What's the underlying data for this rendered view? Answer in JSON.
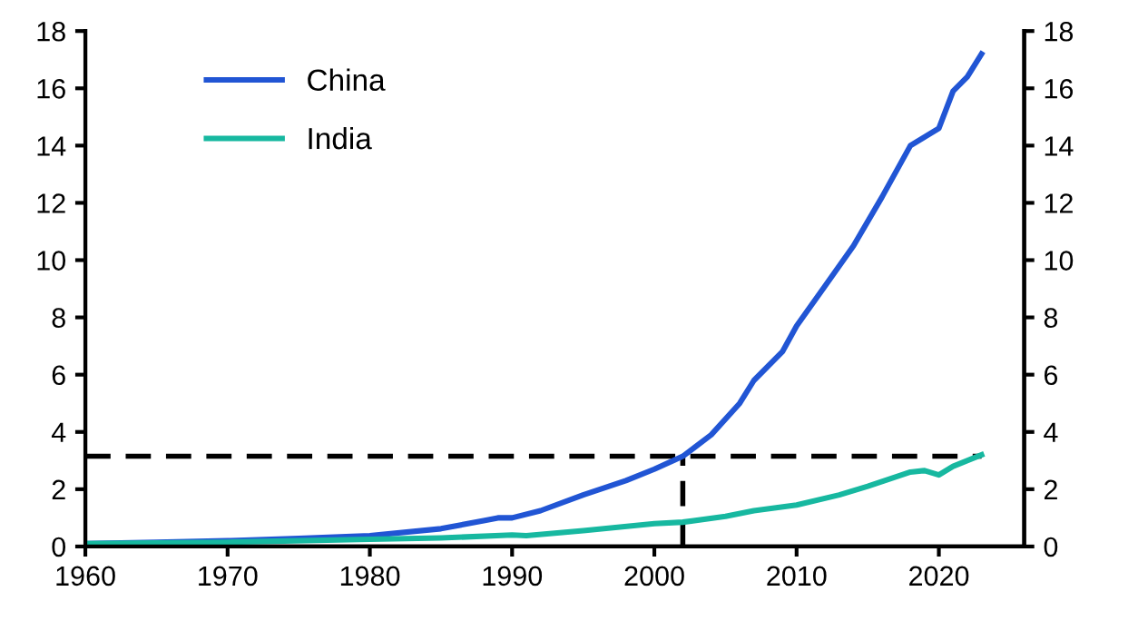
{
  "chart_data": {
    "type": "line",
    "xlim": [
      1960,
      2026
    ],
    "xticks": [
      1960,
      1970,
      1980,
      1990,
      2000,
      2010,
      2020
    ],
    "ylim": [
      0,
      18
    ],
    "yticks": [
      0,
      2,
      4,
      6,
      8,
      10,
      12,
      14,
      16,
      18
    ],
    "y2lim": [
      0,
      18
    ],
    "y2ticks": [
      0,
      2,
      4,
      6,
      8,
      10,
      12,
      14,
      16,
      18
    ],
    "grid": false,
    "legend": "top left",
    "line_style": "solid",
    "series": [
      {
        "name": "China",
        "color": "#2155d4",
        "x": [
          1960,
          1965,
          1970,
          1975,
          1980,
          1985,
          1988,
          1989,
          1990,
          1992,
          1995,
          1998,
          2000,
          2002,
          2004,
          2006,
          2007,
          2009,
          2010,
          2012,
          2014,
          2016,
          2018,
          2019,
          2020,
          2021,
          2022,
          2023
        ],
        "values": [
          0.1,
          0.15,
          0.2,
          0.28,
          0.38,
          0.62,
          0.9,
          1.0,
          1.0,
          1.25,
          1.8,
          2.3,
          2.7,
          3.15,
          3.9,
          5.0,
          5.8,
          6.8,
          7.7,
          9.1,
          10.5,
          12.2,
          14.0,
          14.3,
          14.6,
          15.9,
          16.4,
          17.2
        ]
      },
      {
        "name": "India",
        "color": "#17b8a0",
        "x": [
          1960,
          1970,
          1980,
          1985,
          1990,
          1991,
          1995,
          2000,
          2002,
          2005,
          2007,
          2010,
          2013,
          2015,
          2018,
          2019,
          2020,
          2021,
          2023
        ],
        "values": [
          0.1,
          0.15,
          0.25,
          0.3,
          0.4,
          0.38,
          0.55,
          0.8,
          0.85,
          1.05,
          1.25,
          1.45,
          1.8,
          2.1,
          2.6,
          2.65,
          2.5,
          2.8,
          3.2
        ]
      }
    ],
    "ref_lines": [
      {
        "axis": "y",
        "value": 3.15,
        "color": "#000000",
        "line_style": "dashed"
      },
      {
        "axis": "x",
        "value": 2002,
        "color": "#000000",
        "line_style": "dashed"
      }
    ]
  }
}
